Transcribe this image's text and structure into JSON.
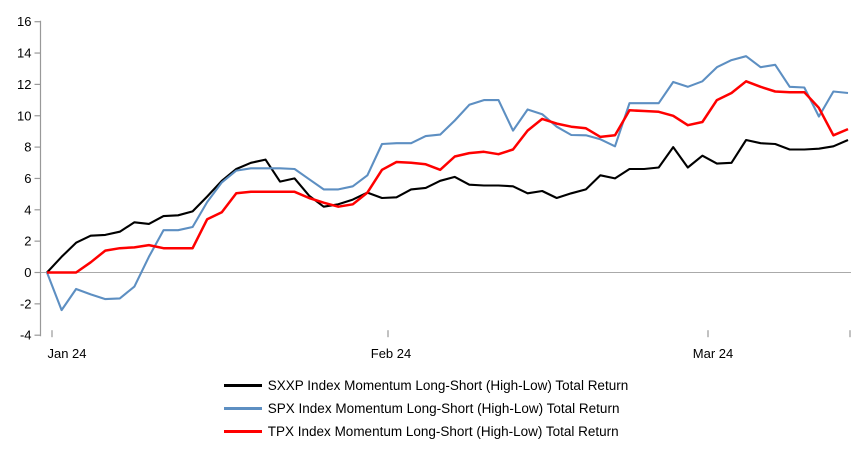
{
  "chart_data": {
    "type": "line",
    "title": "",
    "xlabel": "",
    "ylabel": "",
    "x_tick_labels": [
      "Jan 24",
      "Feb 24",
      "Mar 24"
    ],
    "y_ticks": [
      16,
      14,
      12,
      10,
      8,
      6,
      4,
      2,
      0,
      -2,
      -4
    ],
    "ylim": [
      -4,
      16
    ],
    "grid": "off",
    "zero_line": true,
    "legend_position": "bottom-center",
    "axis_color": "#999999",
    "zero_line_color": "#aaaaaa",
    "series": [
      {
        "id": "sxxp",
        "name": "SXXP Index Momentum Long-Short (High-Low) Total Return",
        "color": "#000000",
        "values": [
          0.0,
          1.0,
          1.9,
          2.35,
          2.4,
          2.6,
          3.2,
          3.1,
          3.6,
          3.65,
          3.9,
          4.85,
          5.85,
          6.6,
          7.0,
          7.2,
          5.8,
          6.0,
          4.9,
          4.2,
          4.35,
          4.65,
          5.1,
          4.75,
          4.8,
          5.3,
          5.4,
          5.85,
          6.1,
          5.6,
          5.55,
          5.55,
          5.5,
          5.05,
          5.2,
          4.75,
          5.05,
          5.3,
          6.2,
          6.0,
          6.6,
          6.6,
          6.7,
          8.0,
          6.7,
          7.45,
          6.95,
          7.0,
          8.45,
          8.25,
          8.2,
          7.85,
          7.85,
          7.9,
          8.05,
          8.45
        ]
      },
      {
        "id": "spx",
        "name": "SPX Index Momentum Long-Short (High-Low) Total Return",
        "color": "#5d8fc2",
        "values": [
          0.0,
          -2.4,
          -1.05,
          -1.4,
          -1.7,
          -1.65,
          -0.9,
          1.0,
          2.7,
          2.7,
          2.9,
          4.5,
          5.75,
          6.5,
          6.65,
          6.65,
          6.65,
          6.6,
          5.95,
          5.3,
          5.3,
          5.5,
          6.2,
          8.2,
          8.25,
          8.25,
          8.7,
          8.8,
          9.7,
          10.7,
          11.0,
          11.0,
          9.05,
          10.4,
          10.1,
          9.3,
          8.77,
          8.75,
          8.5,
          8.05,
          10.8,
          10.8,
          10.8,
          12.15,
          11.85,
          12.2,
          13.1,
          13.55,
          13.8,
          13.1,
          13.25,
          11.85,
          11.8,
          9.95,
          11.55,
          11.45
        ]
      },
      {
        "id": "tpx",
        "name": "TPX Index Momentum Long-Short (High-Low) Total Return",
        "color": "#ff0000",
        "values": [
          0.0,
          0.0,
          0.0,
          0.65,
          1.4,
          1.55,
          1.6,
          1.75,
          1.55,
          1.55,
          1.55,
          3.4,
          3.85,
          5.05,
          5.15,
          5.15,
          5.15,
          5.15,
          4.75,
          4.45,
          4.2,
          4.35,
          5.1,
          6.55,
          7.05,
          7.0,
          6.9,
          6.55,
          7.4,
          7.62,
          7.7,
          7.55,
          7.85,
          9.05,
          9.8,
          9.5,
          9.3,
          9.2,
          8.65,
          8.75,
          10.35,
          10.3,
          10.25,
          10.0,
          9.4,
          9.6,
          11.0,
          11.45,
          12.2,
          11.85,
          11.55,
          11.5,
          11.5,
          10.5,
          8.75,
          9.15
        ]
      }
    ]
  }
}
